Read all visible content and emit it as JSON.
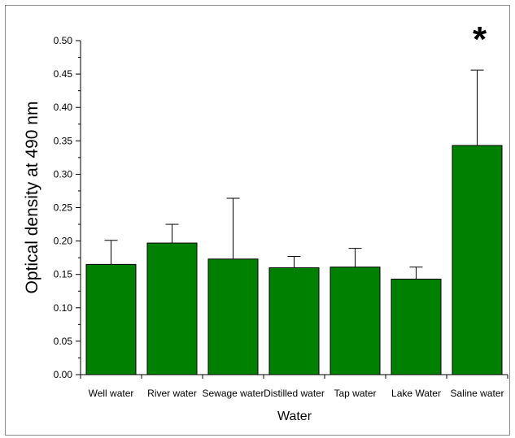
{
  "chart_data": {
    "type": "bar",
    "title": "",
    "xlabel": "Water",
    "ylabel": "Optical density at 490 nm",
    "categories": [
      "Well water",
      "River water",
      "Sewage water",
      "Distilled water",
      "Tap water",
      "Lake Water",
      "Saline water"
    ],
    "values": [
      0.165,
      0.197,
      0.173,
      0.16,
      0.161,
      0.143,
      0.343
    ],
    "error_upper": [
      0.201,
      0.225,
      0.264,
      0.177,
      0.189,
      0.161,
      0.456
    ],
    "annotation": "*",
    "annotation_category": "Saline water",
    "ylim": [
      0,
      0.5
    ],
    "yticks": [
      "0.00",
      "0.05",
      "0.10",
      "0.15",
      "0.20",
      "0.25",
      "0.30",
      "0.35",
      "0.40",
      "0.45",
      "0.50"
    ],
    "grid": false,
    "legend": "none",
    "bar_color": "#008000",
    "bar_outline_color": "#000000"
  }
}
